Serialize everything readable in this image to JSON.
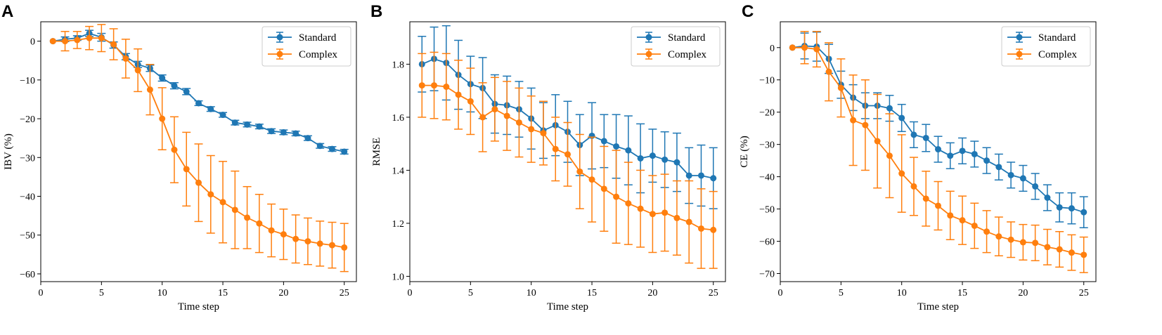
{
  "colors": {
    "standard": "#1f77b4",
    "complex": "#ff7f0e"
  },
  "chart_data": [
    {
      "panel": "A",
      "type": "line",
      "xlabel": "Time step",
      "ylabel": "IBV (%)",
      "xlim": [
        0,
        26
      ],
      "ylim": [
        -62,
        5
      ],
      "xticks": [
        0,
        5,
        10,
        15,
        20,
        25
      ],
      "xtick_labels": [
        "0",
        "5",
        "10",
        "15",
        "20",
        "25"
      ],
      "yticks": [
        0,
        -10,
        -20,
        -30,
        -40,
        -50,
        -60
      ],
      "ytick_labels": [
        "0",
        "−10",
        "−20",
        "−30",
        "−40",
        "−50",
        "−60"
      ],
      "legend": {
        "position": "top-right",
        "entries": [
          "Standard",
          "Complex"
        ]
      },
      "x": [
        1,
        2,
        3,
        4,
        5,
        6,
        7,
        8,
        9,
        10,
        11,
        12,
        13,
        14,
        15,
        16,
        17,
        18,
        19,
        20,
        21,
        22,
        23,
        24,
        25
      ],
      "series": [
        {
          "name": "Standard",
          "color": "#1f77b4",
          "values": [
            0,
            0.5,
            0.8,
            2,
            1,
            -1,
            -4,
            -6,
            -7,
            -9.5,
            -11.5,
            -13,
            -16,
            -17.5,
            -19,
            -21,
            -21.5,
            -22,
            -23.2,
            -23.5,
            -23.8,
            -25,
            -27,
            -27.8,
            -28.5
          ],
          "errors": [
            0,
            0.6,
            0.6,
            0.8,
            1,
            0.8,
            0.8,
            0.8,
            0.8,
            0.8,
            0.8,
            0.8,
            0.6,
            0.6,
            0.6,
            0.6,
            0.6,
            0.6,
            0.6,
            0.6,
            0.6,
            0.6,
            0.6,
            0.6,
            0.6
          ]
        },
        {
          "name": "Complex",
          "color": "#ff7f0e",
          "values": [
            0,
            0,
            0.3,
            0.8,
            0.8,
            -0.8,
            -4.5,
            -7.5,
            -12.5,
            -20,
            -28,
            -33,
            -36.5,
            -39.5,
            -41.5,
            -43.5,
            -45.5,
            -47,
            -48.8,
            -49.8,
            -51,
            -51.6,
            -52.2,
            -52.6,
            -53.2
          ],
          "errors": [
            0,
            2.5,
            2.2,
            3,
            3.5,
            4,
            5,
            5.5,
            6.5,
            8,
            8.5,
            9.5,
            10,
            10,
            10.5,
            10,
            8,
            7.5,
            6.8,
            6.5,
            6.2,
            6,
            5.8,
            5.9,
            6.2
          ]
        }
      ]
    },
    {
      "panel": "B",
      "type": "line",
      "xlabel": "Time step",
      "ylabel": "RMSE",
      "xlim": [
        0,
        26
      ],
      "ylim": [
        0.98,
        1.96
      ],
      "xticks": [
        0,
        5,
        10,
        15,
        20,
        25
      ],
      "xtick_labels": [
        "0",
        "5",
        "10",
        "15",
        "20",
        "25"
      ],
      "yticks": [
        1.0,
        1.2,
        1.4,
        1.6,
        1.8
      ],
      "ytick_labels": [
        "1.0",
        "1.2",
        "1.4",
        "1.6",
        "1.8"
      ],
      "legend": {
        "position": "top-right",
        "entries": [
          "Standard",
          "Complex"
        ]
      },
      "x": [
        1,
        2,
        3,
        4,
        5,
        6,
        7,
        8,
        9,
        10,
        11,
        12,
        13,
        14,
        15,
        16,
        17,
        18,
        19,
        20,
        21,
        22,
        23,
        24,
        25
      ],
      "series": [
        {
          "name": "Standard",
          "color": "#1f77b4",
          "values": [
            1.8,
            1.82,
            1.805,
            1.76,
            1.725,
            1.71,
            1.65,
            1.645,
            1.63,
            1.595,
            1.55,
            1.57,
            1.545,
            1.495,
            1.53,
            1.51,
            1.49,
            1.475,
            1.445,
            1.455,
            1.44,
            1.43,
            1.38,
            1.38,
            1.37
          ],
          "errors": [
            0.105,
            0.12,
            0.14,
            0.13,
            0.105,
            0.115,
            0.11,
            0.11,
            0.105,
            0.115,
            0.105,
            0.115,
            0.115,
            0.115,
            0.125,
            0.1,
            0.12,
            0.13,
            0.13,
            0.1,
            0.105,
            0.11,
            0.105,
            0.115,
            0.115
          ]
        },
        {
          "name": "Complex",
          "color": "#ff7f0e",
          "values": [
            1.72,
            1.72,
            1.715,
            1.685,
            1.66,
            1.6,
            1.63,
            1.605,
            1.58,
            1.555,
            1.54,
            1.48,
            1.46,
            1.395,
            1.365,
            1.33,
            1.3,
            1.275,
            1.255,
            1.235,
            1.24,
            1.22,
            1.205,
            1.18,
            1.175
          ],
          "errors": [
            0.12,
            0.125,
            0.125,
            0.13,
            0.125,
            0.13,
            0.12,
            0.13,
            0.13,
            0.125,
            0.12,
            0.12,
            0.12,
            0.14,
            0.16,
            0.16,
            0.175,
            0.155,
            0.145,
            0.145,
            0.145,
            0.14,
            0.155,
            0.15,
            0.145
          ]
        }
      ]
    },
    {
      "panel": "C",
      "type": "line",
      "xlabel": "Time step",
      "ylabel": "CE (%)",
      "xlim": [
        0,
        26
      ],
      "ylim": [
        -72.5,
        8
      ],
      "xticks": [
        0,
        5,
        10,
        15,
        20,
        25
      ],
      "xtick_labels": [
        "0",
        "5",
        "10",
        "15",
        "20",
        "25"
      ],
      "yticks": [
        0,
        -10,
        -20,
        -30,
        -40,
        -50,
        -60,
        -70
      ],
      "ytick_labels": [
        "0",
        "−10",
        "−20",
        "−30",
        "−40",
        "−50",
        "−60",
        "−70"
      ],
      "legend": {
        "position": "top-right",
        "entries": [
          "Standard",
          "Complex"
        ]
      },
      "x": [
        1,
        2,
        3,
        4,
        5,
        6,
        7,
        8,
        9,
        10,
        11,
        12,
        13,
        14,
        15,
        16,
        17,
        18,
        19,
        20,
        21,
        22,
        23,
        24,
        25
      ],
      "series": [
        {
          "name": "Standard",
          "color": "#1f77b4",
          "values": [
            0,
            0.5,
            0.3,
            -3.5,
            -11.5,
            -15.5,
            -18,
            -18,
            -18.8,
            -21.8,
            -27,
            -28,
            -31.5,
            -33.5,
            -32,
            -33,
            -35,
            -37,
            -39.5,
            -40.5,
            -43,
            -46.5,
            -49.5,
            -49.8,
            -51
          ],
          "errors": [
            0,
            4,
            4.5,
            4.5,
            4.2,
            4,
            4,
            4,
            4,
            4.2,
            4,
            4.2,
            4,
            4,
            4,
            4,
            4,
            4,
            4,
            4,
            4,
            4,
            4.5,
            4.8,
            4.8
          ]
        },
        {
          "name": "Complex",
          "color": "#ff7f0e",
          "values": [
            0,
            0,
            -0.5,
            -7.5,
            -12.5,
            -22.5,
            -24,
            -29,
            -33.5,
            -39,
            -43,
            -46.8,
            -49,
            -52,
            -53.5,
            -55.2,
            -57,
            -58.5,
            -59.5,
            -60.3,
            -60.5,
            -61.8,
            -62.5,
            -63.5,
            -64.2
          ],
          "errors": [
            0,
            5,
            5.5,
            9,
            9,
            14,
            14,
            14.5,
            13,
            12,
            9,
            8.5,
            7.5,
            7.5,
            7.5,
            7,
            6.5,
            6,
            5.5,
            5.5,
            5.5,
            5.5,
            5.5,
            5.5,
            5.5
          ]
        }
      ]
    }
  ]
}
